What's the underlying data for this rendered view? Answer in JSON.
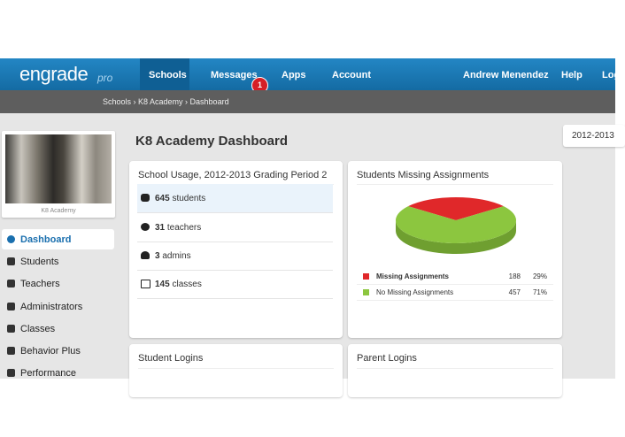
{
  "nav": {
    "logo": "engrade",
    "logo_suffix": "pro",
    "items": [
      "Schools",
      "Messages",
      "Apps",
      "Account"
    ],
    "badge": "1",
    "user": "Andrew Menendez",
    "help": "Help",
    "logout": "Log"
  },
  "breadcrumb": "Schools › K8 Academy › Dashboard",
  "sidebar": {
    "school": "K8 Academy",
    "menu": [
      "Dashboard",
      "Students",
      "Teachers",
      "Administrators",
      "Classes",
      "Behavior Plus",
      "Performance"
    ]
  },
  "page_title": "K8 Academy Dashboard",
  "year": "2012-2013",
  "usage": {
    "title": "School Usage, 2012-2013 Grading Period 2",
    "rows": [
      {
        "count": 645,
        "label": "students"
      },
      {
        "count": 31,
        "label": "teachers"
      },
      {
        "count": 3,
        "label": "admins"
      },
      {
        "count": 145,
        "label": "classes"
      }
    ]
  },
  "missing": {
    "title": "Students Missing Assignments",
    "rows": [
      {
        "name": "Missing Assignments",
        "count": 188,
        "percent": "29%",
        "color": "#e0282a"
      },
      {
        "name": "No Missing Assignments",
        "count": 457,
        "percent": "71%",
        "color": "#8cc63f"
      }
    ]
  },
  "student_logins": "Student Logins",
  "parent_logins": "Parent Logins"
}
